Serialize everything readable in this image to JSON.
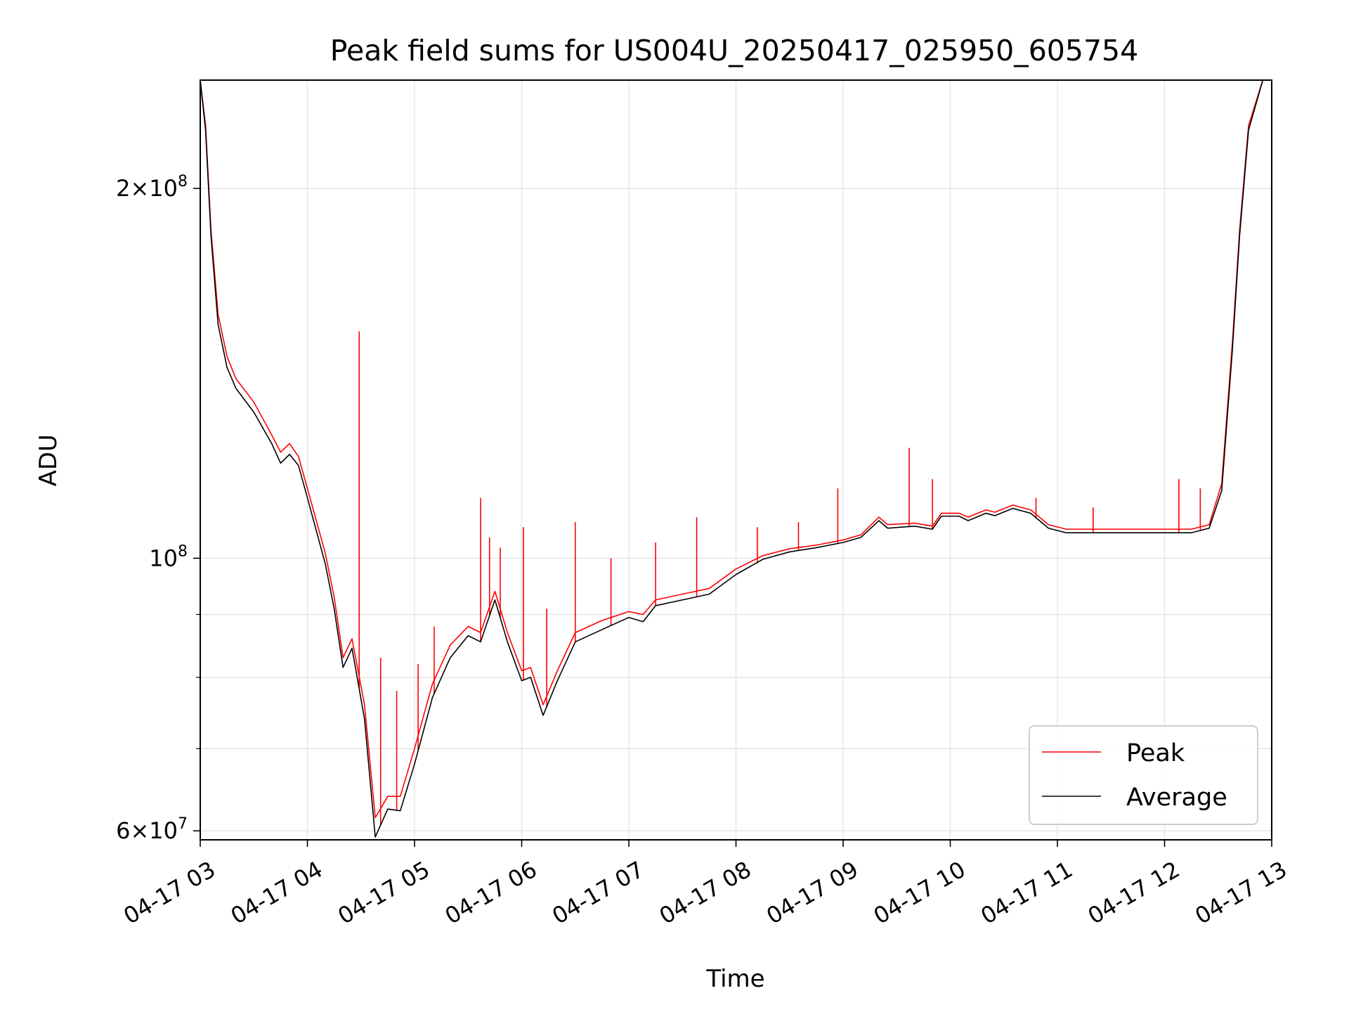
{
  "chart_data": {
    "type": "line",
    "title": "Peak field sums for US004U_20250417_025950_605754",
    "xlabel": "Time",
    "ylabel": "ADU",
    "x_scale": "time",
    "y_scale": "log",
    "xlim": [
      "2025-04-17T03:00",
      "2025-04-17T13:00"
    ],
    "ylim": [
      59000000,
      245000000
    ],
    "x_ticks": [
      {
        "value": "2025-04-17T03:00",
        "label": "04-17 03"
      },
      {
        "value": "2025-04-17T04:00",
        "label": "04-17 04"
      },
      {
        "value": "2025-04-17T05:00",
        "label": "04-17 05"
      },
      {
        "value": "2025-04-17T06:00",
        "label": "04-17 06"
      },
      {
        "value": "2025-04-17T07:00",
        "label": "04-17 07"
      },
      {
        "value": "2025-04-17T08:00",
        "label": "04-17 08"
      },
      {
        "value": "2025-04-17T09:00",
        "label": "04-17 09"
      },
      {
        "value": "2025-04-17T10:00",
        "label": "04-17 10"
      },
      {
        "value": "2025-04-17T11:00",
        "label": "04-17 11"
      },
      {
        "value": "2025-04-17T12:00",
        "label": "04-17 12"
      },
      {
        "value": "2025-04-17T13:00",
        "label": "04-17 13"
      }
    ],
    "y_ticks_major": [
      {
        "value": 60000000,
        "base": "6",
        "exp": "7"
      },
      {
        "value": 100000000,
        "base": "",
        "exp": "8"
      },
      {
        "value": 200000000,
        "base": "2",
        "exp": "8"
      }
    ],
    "y_ticks_minor": [
      70000000,
      80000000,
      90000000
    ],
    "grid": true,
    "legend_position": "lower-right",
    "series": [
      {
        "name": "Peak",
        "color": "#ff0000",
        "points": [
          [
            "2025-04-17T03:00",
            245000000
          ],
          [
            "2025-04-17T03:03",
            225000000
          ],
          [
            "2025-04-17T03:06",
            185000000
          ],
          [
            "2025-04-17T03:10",
            158000000
          ],
          [
            "2025-04-17T03:15",
            146000000
          ],
          [
            "2025-04-17T03:20",
            140000000
          ],
          [
            "2025-04-17T03:30",
            134000000
          ],
          [
            "2025-04-17T03:40",
            126000000
          ],
          [
            "2025-04-17T03:45",
            122000000
          ],
          [
            "2025-04-17T03:50",
            124000000
          ],
          [
            "2025-04-17T03:55",
            121000000
          ],
          [
            "2025-04-17T04:00",
            114000000
          ],
          [
            "2025-04-17T04:10",
            101000000
          ],
          [
            "2025-04-17T04:15",
            93000000
          ],
          [
            "2025-04-17T04:20",
            83000000
          ],
          [
            "2025-04-17T04:25",
            86000000
          ],
          [
            "2025-04-17T04:32",
            76000000
          ],
          [
            "2025-04-17T04:38",
            61500000
          ],
          [
            "2025-04-17T04:45",
            64000000
          ],
          [
            "2025-04-17T04:52",
            64000000
          ],
          [
            "2025-04-17T05:00",
            70000000
          ],
          [
            "2025-04-17T05:10",
            79000000
          ],
          [
            "2025-04-17T05:20",
            85000000
          ],
          [
            "2025-04-17T05:30",
            88000000
          ],
          [
            "2025-04-17T05:37",
            87000000
          ],
          [
            "2025-04-17T05:45",
            94000000
          ],
          [
            "2025-04-17T05:52",
            87000000
          ],
          [
            "2025-04-17T06:00",
            81000000
          ],
          [
            "2025-04-17T06:05",
            81500000
          ],
          [
            "2025-04-17T06:12",
            76000000
          ],
          [
            "2025-04-17T06:20",
            81000000
          ],
          [
            "2025-04-17T06:30",
            87000000
          ],
          [
            "2025-04-17T06:45",
            89000000
          ],
          [
            "2025-04-17T07:00",
            90500000
          ],
          [
            "2025-04-17T07:08",
            90000000
          ],
          [
            "2025-04-17T07:15",
            92500000
          ],
          [
            "2025-04-17T07:30",
            93500000
          ],
          [
            "2025-04-17T07:45",
            94500000
          ],
          [
            "2025-04-17T08:00",
            98000000
          ],
          [
            "2025-04-17T08:15",
            100500000
          ],
          [
            "2025-04-17T08:30",
            101800000
          ],
          [
            "2025-04-17T08:45",
            102500000
          ],
          [
            "2025-04-17T09:00",
            103500000
          ],
          [
            "2025-04-17T09:10",
            104500000
          ],
          [
            "2025-04-17T09:20",
            108000000
          ],
          [
            "2025-04-17T09:25",
            106500000
          ],
          [
            "2025-04-17T09:40",
            106800000
          ],
          [
            "2025-04-17T09:50",
            106200000
          ],
          [
            "2025-04-17T09:55",
            108800000
          ],
          [
            "2025-04-17T10:05",
            108800000
          ],
          [
            "2025-04-17T10:10",
            108000000
          ],
          [
            "2025-04-17T10:20",
            109500000
          ],
          [
            "2025-04-17T10:25",
            109000000
          ],
          [
            "2025-04-17T10:35",
            110500000
          ],
          [
            "2025-04-17T10:45",
            109500000
          ],
          [
            "2025-04-17T10:55",
            106500000
          ],
          [
            "2025-04-17T11:05",
            105600000
          ],
          [
            "2025-04-17T11:15",
            105600000
          ],
          [
            "2025-04-17T11:45",
            105600000
          ],
          [
            "2025-04-17T12:15",
            105600000
          ],
          [
            "2025-04-17T12:25",
            106500000
          ],
          [
            "2025-04-17T12:32",
            115000000
          ],
          [
            "2025-04-17T12:38",
            150000000
          ],
          [
            "2025-04-17T12:42",
            185000000
          ],
          [
            "2025-04-17T12:47",
            225000000
          ],
          [
            "2025-04-17T12:55",
            245000000
          ]
        ]
      },
      {
        "name": "Average",
        "color": "#000000",
        "points": [
          [
            "2025-04-17T03:00",
            245000000
          ],
          [
            "2025-04-17T03:03",
            223000000
          ],
          [
            "2025-04-17T03:06",
            183000000
          ],
          [
            "2025-04-17T03:10",
            155000000
          ],
          [
            "2025-04-17T03:15",
            143000000
          ],
          [
            "2025-04-17T03:20",
            137500000
          ],
          [
            "2025-04-17T03:30",
            131500000
          ],
          [
            "2025-04-17T03:40",
            124000000
          ],
          [
            "2025-04-17T03:45",
            119500000
          ],
          [
            "2025-04-17T03:50",
            121500000
          ],
          [
            "2025-04-17T03:55",
            119000000
          ],
          [
            "2025-04-17T04:00",
            112000000
          ],
          [
            "2025-04-17T04:10",
            99000000
          ],
          [
            "2025-04-17T04:15",
            91000000
          ],
          [
            "2025-04-17T04:20",
            81500000
          ],
          [
            "2025-04-17T04:25",
            84500000
          ],
          [
            "2025-04-17T04:32",
            74000000
          ],
          [
            "2025-04-17T04:38",
            59300000
          ],
          [
            "2025-04-17T04:45",
            62500000
          ],
          [
            "2025-04-17T04:52",
            62300000
          ],
          [
            "2025-04-17T05:00",
            68000000
          ],
          [
            "2025-04-17T05:10",
            77000000
          ],
          [
            "2025-04-17T05:20",
            83000000
          ],
          [
            "2025-04-17T05:30",
            86500000
          ],
          [
            "2025-04-17T05:37",
            85500000
          ],
          [
            "2025-04-17T05:45",
            92500000
          ],
          [
            "2025-04-17T05:52",
            85500000
          ],
          [
            "2025-04-17T06:00",
            79500000
          ],
          [
            "2025-04-17T06:05",
            80000000
          ],
          [
            "2025-04-17T06:12",
            74500000
          ],
          [
            "2025-04-17T06:20",
            79500000
          ],
          [
            "2025-04-17T06:30",
            85500000
          ],
          [
            "2025-04-17T06:45",
            87500000
          ],
          [
            "2025-04-17T07:00",
            89500000
          ],
          [
            "2025-04-17T07:08",
            88800000
          ],
          [
            "2025-04-17T07:15",
            91500000
          ],
          [
            "2025-04-17T07:30",
            92500000
          ],
          [
            "2025-04-17T07:45",
            93500000
          ],
          [
            "2025-04-17T08:00",
            97000000
          ],
          [
            "2025-04-17T08:15",
            99800000
          ],
          [
            "2025-04-17T08:30",
            101200000
          ],
          [
            "2025-04-17T08:45",
            102000000
          ],
          [
            "2025-04-17T09:00",
            103000000
          ],
          [
            "2025-04-17T09:10",
            104000000
          ],
          [
            "2025-04-17T09:20",
            107300000
          ],
          [
            "2025-04-17T09:25",
            105800000
          ],
          [
            "2025-04-17T09:40",
            106200000
          ],
          [
            "2025-04-17T09:50",
            105600000
          ],
          [
            "2025-04-17T09:55",
            108200000
          ],
          [
            "2025-04-17T10:05",
            108200000
          ],
          [
            "2025-04-17T10:10",
            107300000
          ],
          [
            "2025-04-17T10:20",
            108800000
          ],
          [
            "2025-04-17T10:25",
            108300000
          ],
          [
            "2025-04-17T10:35",
            109800000
          ],
          [
            "2025-04-17T10:45",
            108800000
          ],
          [
            "2025-04-17T10:55",
            105800000
          ],
          [
            "2025-04-17T11:05",
            104900000
          ],
          [
            "2025-04-17T11:15",
            104900000
          ],
          [
            "2025-04-17T11:45",
            104900000
          ],
          [
            "2025-04-17T12:15",
            104900000
          ],
          [
            "2025-04-17T12:25",
            105800000
          ],
          [
            "2025-04-17T12:32",
            113500000
          ],
          [
            "2025-04-17T12:38",
            148000000
          ],
          [
            "2025-04-17T12:42",
            183000000
          ],
          [
            "2025-04-17T12:47",
            223000000
          ],
          [
            "2025-04-17T12:55",
            245000000
          ]
        ]
      }
    ],
    "spikes": [
      [
        "2025-04-17T04:29",
        153000000
      ],
      [
        "2025-04-17T04:41",
        83000000
      ],
      [
        "2025-04-17T04:50",
        78000000
      ],
      [
        "2025-04-17T05:02",
        82000000
      ],
      [
        "2025-04-17T05:11",
        88000000
      ],
      [
        "2025-04-17T05:37",
        112000000
      ],
      [
        "2025-04-17T05:42",
        104000000
      ],
      [
        "2025-04-17T05:48",
        102000000
      ],
      [
        "2025-04-17T06:01",
        106000000
      ],
      [
        "2025-04-17T06:14",
        91000000
      ],
      [
        "2025-04-17T06:30",
        107000000
      ],
      [
        "2025-04-17T06:50",
        100000000
      ],
      [
        "2025-04-17T07:15",
        103000000
      ],
      [
        "2025-04-17T07:38",
        108000000
      ],
      [
        "2025-04-17T08:12",
        106000000
      ],
      [
        "2025-04-17T08:35",
        107000000
      ],
      [
        "2025-04-17T08:57",
        114000000
      ],
      [
        "2025-04-17T09:37",
        123000000
      ],
      [
        "2025-04-17T09:50",
        116000000
      ],
      [
        "2025-04-17T10:48",
        112000000
      ],
      [
        "2025-04-17T11:20",
        110000000
      ],
      [
        "2025-04-17T12:08",
        116000000
      ],
      [
        "2025-04-17T12:20",
        114000000
      ]
    ]
  },
  "legend": {
    "items": [
      {
        "label": "Peak",
        "color": "#ff0000"
      },
      {
        "label": "Average",
        "color": "#000000"
      }
    ]
  }
}
